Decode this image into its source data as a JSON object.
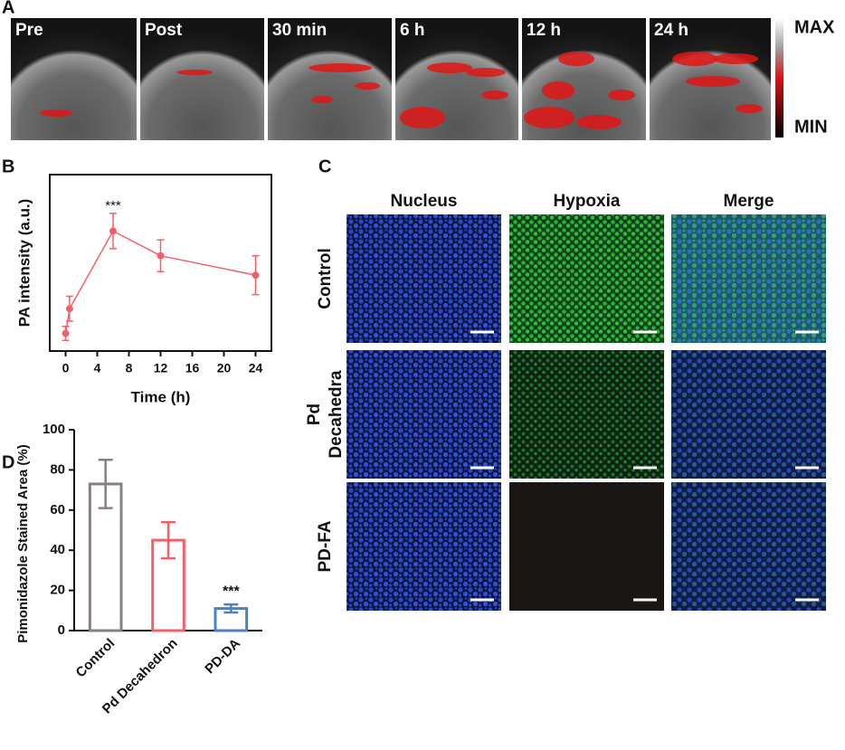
{
  "panel_a": {
    "label": "A",
    "frames": [
      "Pre",
      "Post",
      "30 min",
      "6 h",
      "12 h",
      "24 h"
    ],
    "scale_max": "MAX",
    "scale_min": "MIN"
  },
  "panel_c": {
    "label": "C",
    "columns": [
      "Nucleus",
      "Hypoxia",
      "Merge"
    ],
    "rows": [
      [
        "Control"
      ],
      [
        "Pd",
        "Decahedra"
      ],
      [
        "PD-FA"
      ]
    ]
  },
  "chart_data": [
    {
      "type": "line",
      "panel": "B",
      "x_label": "Time (h)",
      "y_label": "PA intensity (a.u.)",
      "x": [
        0,
        0.5,
        6,
        12,
        24
      ],
      "values": [
        0.1,
        0.24,
        0.68,
        0.54,
        0.43
      ],
      "errors": [
        0.04,
        0.07,
        0.1,
        0.09,
        0.11
      ],
      "color": "#f0626a",
      "annotation": "***",
      "xlim": [
        -2,
        26
      ],
      "xticks": [
        0,
        4,
        8,
        12,
        16,
        20,
        24
      ],
      "ylim": [
        0,
        1
      ]
    },
    {
      "type": "bar",
      "panel": "D",
      "y_label": "Pimonidazole Stained Area (%)",
      "categories": [
        "Control",
        "Pd Decahedron",
        "PD-DA"
      ],
      "values": [
        73,
        45,
        11
      ],
      "errors": [
        12,
        9,
        2
      ],
      "colors": [
        "#8a7f80",
        "#f4606a",
        "#4a84c0"
      ],
      "annotation": "***",
      "ylim": [
        0,
        100
      ],
      "yticks": [
        0,
        20,
        40,
        60,
        80,
        100
      ]
    }
  ]
}
